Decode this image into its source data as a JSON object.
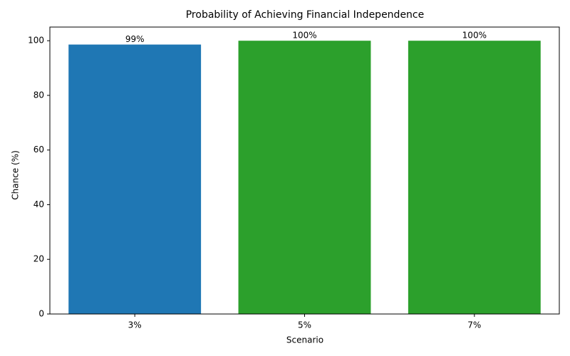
{
  "chart_data": {
    "type": "bar",
    "title": "Probability of Achieving Financial Independence",
    "x_label": "Scenario",
    "y_label": "Chance (%)",
    "categories": [
      "3%",
      "5%",
      "7%"
    ],
    "values": [
      98.6,
      100,
      100
    ],
    "value_labels": [
      "99%",
      "100%",
      "100%"
    ],
    "colors": [
      "#1f77b4",
      "#2ca02c",
      "#2ca02c"
    ],
    "ylim": [
      0,
      105
    ],
    "yticks": [
      0,
      20,
      40,
      60,
      80,
      100
    ],
    "grid": false
  }
}
